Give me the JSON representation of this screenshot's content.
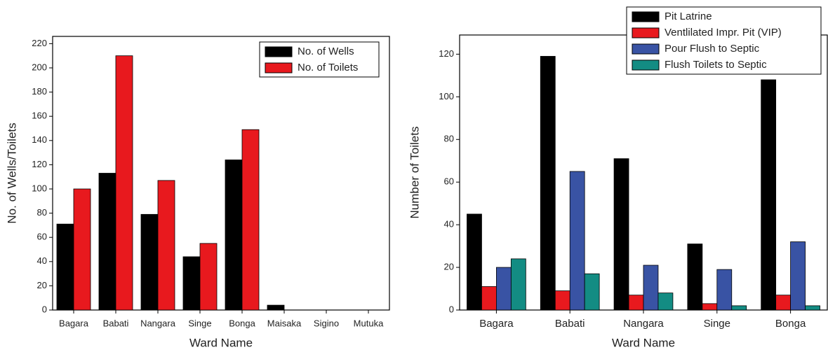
{
  "chart_data": [
    {
      "type": "bar",
      "categories": [
        "Bagara",
        "Babati",
        "Nangara",
        "Singe",
        "Bonga",
        "Maisaka",
        "Sigino",
        "Mutuka"
      ],
      "series": [
        {
          "name": "No. of Wells",
          "color": "#000000",
          "values": [
            71,
            113,
            79,
            44,
            124,
            4,
            0,
            0
          ]
        },
        {
          "name": "No. of Toilets",
          "color": "#e8191e",
          "values": [
            100,
            210,
            107,
            55,
            149,
            0,
            0,
            0
          ]
        }
      ],
      "x_label": "Ward Name",
      "y_label": "No. of Wells/Toilets",
      "ylim": [
        0,
        226
      ],
      "yticks": [
        0,
        20,
        40,
        60,
        80,
        100,
        120,
        140,
        160,
        180,
        200,
        220
      ],
      "grid": false,
      "legend": "upper right"
    },
    {
      "type": "bar",
      "categories": [
        "Bagara",
        "Babati",
        "Nangara",
        "Singe",
        "Bonga"
      ],
      "series": [
        {
          "name": "Pit Latrine",
          "color": "#000000",
          "values": [
            45,
            119,
            71,
            31,
            108
          ]
        },
        {
          "name": "Ventlilated Impr. Pit (VIP)",
          "color": "#e8191e",
          "values": [
            11,
            9,
            7,
            3,
            7
          ]
        },
        {
          "name": "Pour Flush to Septic",
          "color": "#3953a4",
          "values": [
            20,
            65,
            21,
            19,
            32
          ]
        },
        {
          "name": "Flush Toilets to Septic",
          "color": "#138c83",
          "values": [
            24,
            17,
            8,
            2,
            2
          ]
        }
      ],
      "x_label": "Ward Name",
      "y_label": "Number of Toilets",
      "ylim": [
        0,
        129
      ],
      "yticks": [
        0,
        20,
        40,
        60,
        80,
        100,
        120
      ],
      "grid": false,
      "legend": "upper right"
    }
  ]
}
